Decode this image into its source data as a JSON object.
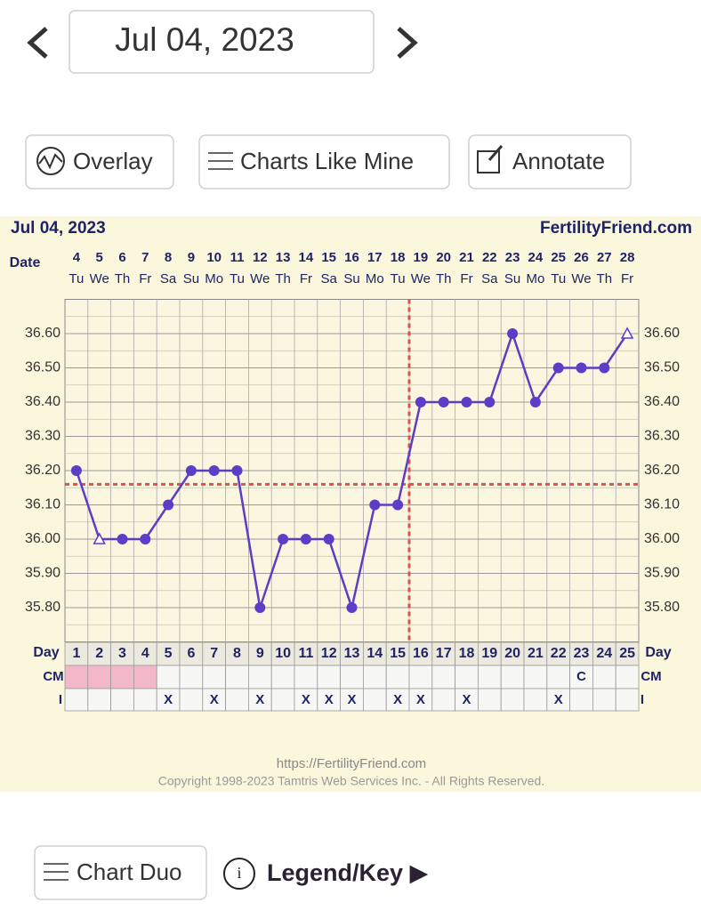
{
  "header": {
    "date": "Jul 04, 2023"
  },
  "buttons": {
    "overlay": "Overlay",
    "charts_like_mine": "Charts Like Mine",
    "annotate": "Annotate",
    "chart_duo": "Chart Duo",
    "legend": "Legend/Key ▶"
  },
  "chart_data": {
    "type": "line",
    "title": "Jul 04, 2023",
    "brand": "FertilityFriend.com",
    "date_label": "Date",
    "day_label": "Day",
    "cm_label": "CM",
    "i_label": "I",
    "categories": [
      "4",
      "5",
      "6",
      "7",
      "8",
      "9",
      "10",
      "11",
      "12",
      "13",
      "14",
      "15",
      "16",
      "17",
      "18",
      "19",
      "20",
      "21",
      "22",
      "23",
      "24",
      "25",
      "26",
      "27",
      "28"
    ],
    "weekdays": [
      "Tu",
      "We",
      "Th",
      "Fr",
      "Sa",
      "Su",
      "Mo",
      "Tu",
      "We",
      "Th",
      "Fr",
      "Sa",
      "Su",
      "Mo",
      "Tu",
      "We",
      "Th",
      "Fr",
      "Sa",
      "Su",
      "Mo",
      "Tu",
      "We",
      "Th",
      "Fr"
    ],
    "days": [
      1,
      2,
      3,
      4,
      5,
      6,
      7,
      8,
      9,
      10,
      11,
      12,
      13,
      14,
      15,
      16,
      17,
      18,
      19,
      20,
      21,
      22,
      23,
      24,
      25
    ],
    "values": [
      36.2,
      36.0,
      36.0,
      36.0,
      36.1,
      36.2,
      36.2,
      36.2,
      35.8,
      36.0,
      36.0,
      36.0,
      35.8,
      36.1,
      36.1,
      36.4,
      36.4,
      36.4,
      36.4,
      36.6,
      36.4,
      36.5,
      36.5,
      36.5,
      36.6
    ],
    "markers": [
      "circle",
      "triangle-open",
      "circle",
      "circle",
      "circle",
      "circle",
      "circle",
      "circle",
      "circle",
      "circle",
      "circle",
      "circle",
      "circle",
      "circle",
      "circle",
      "circle",
      "circle",
      "circle",
      "circle",
      "circle",
      "circle",
      "circle",
      "circle",
      "circle",
      "triangle-open"
    ],
    "color": "#5a3fc6",
    "coverline": 36.16,
    "coverline_color": "#d9534f",
    "ovulation_date": "18",
    "ylim": [
      35.7,
      36.7
    ],
    "yticks": [
      {
        "value": 35.8,
        "label": "35.80"
      },
      {
        "value": 35.9,
        "label": "35.90"
      },
      {
        "value": 36.0,
        "label": "36.00"
      },
      {
        "value": 36.1,
        "label": "36.10"
      },
      {
        "value": 36.2,
        "label": "36.20"
      },
      {
        "value": 36.3,
        "label": "36.30"
      },
      {
        "value": 36.4,
        "label": "36.40"
      },
      {
        "value": 36.5,
        "label": "36.50"
      },
      {
        "value": 36.6,
        "label": "36.60"
      }
    ],
    "grid": true,
    "period": [
      true,
      true,
      true,
      true,
      false,
      false,
      false,
      false,
      false,
      false,
      false,
      false,
      false,
      false,
      false,
      false,
      false,
      false,
      false,
      false,
      false,
      false,
      false,
      false,
      false
    ],
    "cm": [
      null,
      null,
      null,
      null,
      null,
      null,
      null,
      null,
      null,
      null,
      null,
      null,
      null,
      null,
      null,
      null,
      null,
      null,
      null,
      null,
      null,
      null,
      "C",
      null,
      null
    ],
    "intercourse": [
      null,
      null,
      null,
      null,
      "X",
      null,
      "X",
      null,
      "X",
      null,
      "X",
      "X",
      "X",
      null,
      "X",
      "X",
      null,
      "X",
      null,
      null,
      null,
      "X",
      null,
      null,
      null
    ],
    "footer_url": "https://FertilityFriend.com",
    "copyright": "Copyright 1998-2023 Tamtris Web Services Inc. - All Rights Reserved."
  }
}
